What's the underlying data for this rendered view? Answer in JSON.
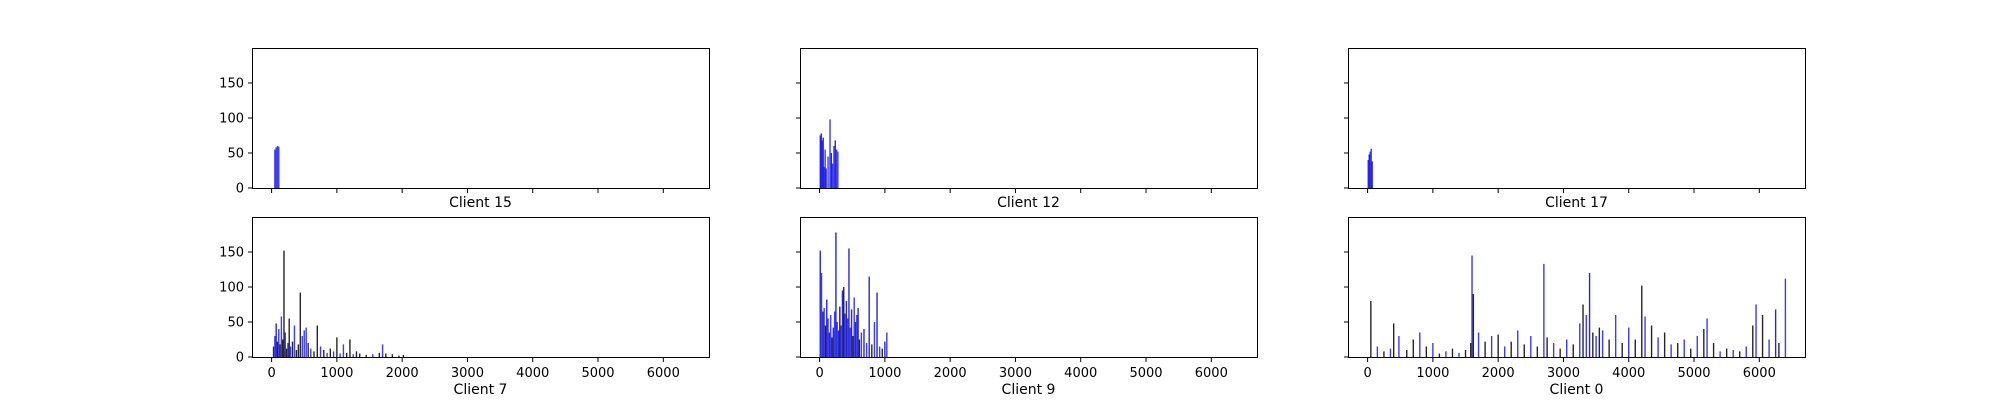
{
  "chart_data": [
    {
      "type": "bar",
      "xlabel": "Client 15",
      "xlim": [
        -300,
        6700
      ],
      "ylim": [
        0,
        200
      ],
      "xticks": [
        0,
        1000,
        2000,
        3000,
        4000,
        5000,
        6000
      ],
      "yticks": [
        0,
        50,
        100,
        150
      ],
      "show_xticklabels": false,
      "show_yticklabels": true,
      "grid": false,
      "bars": [
        [
          50,
          55,
          "#1a1aee"
        ],
        [
          70,
          58,
          "#1a1aee"
        ],
        [
          90,
          60,
          "#1a1aee"
        ],
        [
          110,
          59,
          "#1a1aee"
        ]
      ]
    },
    {
      "type": "bar",
      "xlabel": "Client 12",
      "xlim": [
        -300,
        6700
      ],
      "ylim": [
        0,
        200
      ],
      "xticks": [
        0,
        1000,
        2000,
        3000,
        4000,
        5000,
        6000
      ],
      "yticks": [
        0,
        50,
        100,
        150
      ],
      "show_xticklabels": false,
      "show_yticklabels": false,
      "grid": false,
      "bars": [
        [
          10,
          75,
          "#1a1aee"
        ],
        [
          25,
          78,
          "#0000cc"
        ],
        [
          40,
          68,
          "#1a1aee"
        ],
        [
          55,
          72,
          "#0000cc"
        ],
        [
          70,
          30,
          "#1a1aee"
        ],
        [
          85,
          55,
          "#1a1aee"
        ],
        [
          100,
          28,
          "#0000cc"
        ],
        [
          130,
          45,
          "#1a1aee"
        ],
        [
          160,
          98,
          "#1a1aee"
        ],
        [
          180,
          50,
          "#0000cc"
        ],
        [
          200,
          35,
          "#1a1aee"
        ],
        [
          220,
          60,
          "#1a1aee"
        ],
        [
          240,
          68,
          "#0000cc"
        ],
        [
          260,
          55,
          "#1a1aee"
        ],
        [
          280,
          52,
          "#1a1aee"
        ]
      ]
    },
    {
      "type": "bar",
      "xlabel": "Client 17",
      "xlim": [
        -300,
        6700
      ],
      "ylim": [
        0,
        200
      ],
      "xticks": [
        0,
        1000,
        2000,
        3000,
        4000,
        5000,
        6000
      ],
      "yticks": [
        0,
        50,
        100,
        150
      ],
      "show_xticklabels": false,
      "show_yticklabels": false,
      "grid": false,
      "bars": [
        [
          10,
          40,
          "#1a1aee"
        ],
        [
          25,
          48,
          "#0000cc"
        ],
        [
          40,
          52,
          "#1a1aee"
        ],
        [
          55,
          56,
          "#1a1aee"
        ],
        [
          70,
          38,
          "#0000cc"
        ]
      ]
    },
    {
      "type": "bar",
      "xlabel": "Client 7",
      "xlim": [
        -300,
        6700
      ],
      "ylim": [
        0,
        200
      ],
      "xticks": [
        0,
        1000,
        2000,
        3000,
        4000,
        5000,
        6000
      ],
      "yticks": [
        0,
        50,
        100,
        150
      ],
      "show_xticklabels": true,
      "show_yticklabels": true,
      "grid": false,
      "bars": [
        [
          30,
          15,
          "#000000"
        ],
        [
          50,
          30,
          "#1a1aee"
        ],
        [
          70,
          48,
          "#0000cc"
        ],
        [
          90,
          22,
          "#000000"
        ],
        [
          110,
          40,
          "#1a1aee"
        ],
        [
          130,
          18,
          "#000000"
        ],
        [
          150,
          58,
          "#1a1aee"
        ],
        [
          170,
          25,
          "#000000"
        ],
        [
          190,
          152,
          "#000000"
        ],
        [
          210,
          35,
          "#1a1aee"
        ],
        [
          230,
          12,
          "#000000"
        ],
        [
          250,
          20,
          "#1a1aee"
        ],
        [
          270,
          55,
          "#000000"
        ],
        [
          290,
          15,
          "#1a1aee"
        ],
        [
          320,
          22,
          "#000000"
        ],
        [
          350,
          45,
          "#1a1aee"
        ],
        [
          380,
          10,
          "#000000"
        ],
        [
          410,
          18,
          "#000000"
        ],
        [
          440,
          92,
          "#000000"
        ],
        [
          470,
          30,
          "#1a1aee"
        ],
        [
          500,
          38,
          "#1a1aee"
        ],
        [
          530,
          42,
          "#1a1aee"
        ],
        [
          560,
          20,
          "#000000"
        ],
        [
          600,
          12,
          "#1a1aee"
        ],
        [
          650,
          8,
          "#000000"
        ],
        [
          700,
          45,
          "#000000"
        ],
        [
          750,
          15,
          "#1a1aee"
        ],
        [
          800,
          10,
          "#000000"
        ],
        [
          850,
          6,
          "#1a1aee"
        ],
        [
          900,
          12,
          "#000000"
        ],
        [
          950,
          8,
          "#1a1aee"
        ],
        [
          1000,
          28,
          "#000000"
        ],
        [
          1050,
          5,
          "#1a1aee"
        ],
        [
          1100,
          18,
          "#1a1aee"
        ],
        [
          1150,
          6,
          "#000000"
        ],
        [
          1200,
          25,
          "#000000"
        ],
        [
          1250,
          4,
          "#1a1aee"
        ],
        [
          1300,
          8,
          "#000000"
        ],
        [
          1350,
          5,
          "#000000"
        ],
        [
          1450,
          3,
          "#000000"
        ],
        [
          1550,
          4,
          "#1a1aee"
        ],
        [
          1650,
          6,
          "#000000"
        ],
        [
          1700,
          18,
          "#1a1aee"
        ],
        [
          1750,
          5,
          "#000000"
        ],
        [
          1850,
          4,
          "#000000"
        ],
        [
          1950,
          2,
          "#000000"
        ],
        [
          2020,
          3,
          "#000000"
        ]
      ]
    },
    {
      "type": "bar",
      "xlabel": "Client 9",
      "xlim": [
        -300,
        6700
      ],
      "ylim": [
        0,
        200
      ],
      "xticks": [
        0,
        1000,
        2000,
        3000,
        4000,
        5000,
        6000
      ],
      "yticks": [
        0,
        50,
        100,
        150
      ],
      "show_xticklabels": true,
      "show_yticklabels": false,
      "grid": false,
      "bars": [
        [
          10,
          152,
          "#0000cc"
        ],
        [
          30,
          120,
          "#1a1aee"
        ],
        [
          50,
          65,
          "#0000cc"
        ],
        [
          70,
          70,
          "#1a1aee"
        ],
        [
          90,
          45,
          "#000000"
        ],
        [
          110,
          82,
          "#0000cc"
        ],
        [
          130,
          55,
          "#1a1aee"
        ],
        [
          150,
          35,
          "#0000cc"
        ],
        [
          170,
          60,
          "#1a1aee"
        ],
        [
          190,
          28,
          "#000000"
        ],
        [
          210,
          42,
          "#0000cc"
        ],
        [
          230,
          65,
          "#1a1aee"
        ],
        [
          250,
          178,
          "#0000cc"
        ],
        [
          270,
          50,
          "#1a1aee"
        ],
        [
          290,
          38,
          "#0000cc"
        ],
        [
          310,
          72,
          "#000000"
        ],
        [
          330,
          45,
          "#1a1aee"
        ],
        [
          350,
          95,
          "#0000cc"
        ],
        [
          370,
          100,
          "#000000"
        ],
        [
          390,
          62,
          "#1a1aee"
        ],
        [
          410,
          80,
          "#0000cc"
        ],
        [
          430,
          55,
          "#1a1aee"
        ],
        [
          450,
          155,
          "#0000cc"
        ],
        [
          470,
          42,
          "#1a1aee"
        ],
        [
          490,
          68,
          "#0000cc"
        ],
        [
          510,
          30,
          "#000000"
        ],
        [
          530,
          85,
          "#1a1aee"
        ],
        [
          550,
          50,
          "#0000cc"
        ],
        [
          570,
          60,
          "#1a1aee"
        ],
        [
          590,
          70,
          "#0000cc"
        ],
        [
          610,
          25,
          "#000000"
        ],
        [
          640,
          35,
          "#1a1aee"
        ],
        [
          680,
          40,
          "#0000cc"
        ],
        [
          720,
          20,
          "#1a1aee"
        ],
        [
          760,
          115,
          "#0000cc"
        ],
        [
          800,
          18,
          "#000000"
        ],
        [
          840,
          50,
          "#1a1aee"
        ],
        [
          880,
          92,
          "#0000cc"
        ],
        [
          920,
          15,
          "#1a1aee"
        ],
        [
          960,
          12,
          "#000000"
        ],
        [
          1000,
          22,
          "#0000cc"
        ],
        [
          1030,
          35,
          "#1a1aee"
        ]
      ]
    },
    {
      "type": "bar",
      "xlabel": "Client 0",
      "xlim": [
        -300,
        6700
      ],
      "ylim": [
        0,
        200
      ],
      "xticks": [
        0,
        1000,
        2000,
        3000,
        4000,
        5000,
        6000
      ],
      "yticks": [
        0,
        50,
        100,
        150
      ],
      "show_xticklabels": true,
      "show_yticklabels": false,
      "grid": false,
      "bars": [
        [
          50,
          80,
          "#000000"
        ],
        [
          150,
          15,
          "#1a1aee"
        ],
        [
          250,
          8,
          "#000000"
        ],
        [
          350,
          12,
          "#1a1aee"
        ],
        [
          400,
          48,
          "#000000"
        ],
        [
          480,
          30,
          "#1a1aee"
        ],
        [
          600,
          10,
          "#000000"
        ],
        [
          700,
          25,
          "#000000"
        ],
        [
          800,
          35,
          "#1a1aee"
        ],
        [
          900,
          15,
          "#000000"
        ],
        [
          1000,
          20,
          "#1a1aee"
        ],
        [
          1100,
          5,
          "#000000"
        ],
        [
          1200,
          8,
          "#1a1aee"
        ],
        [
          1300,
          12,
          "#000000"
        ],
        [
          1400,
          6,
          "#1a1aee"
        ],
        [
          1500,
          10,
          "#000000"
        ],
        [
          1580,
          20,
          "#000000"
        ],
        [
          1600,
          145,
          "#1a1aee"
        ],
        [
          1620,
          90,
          "#000000"
        ],
        [
          1700,
          35,
          "#1a1aee"
        ],
        [
          1800,
          22,
          "#000000"
        ],
        [
          1900,
          30,
          "#1a1aee"
        ],
        [
          2000,
          32,
          "#000000"
        ],
        [
          2100,
          15,
          "#1a1aee"
        ],
        [
          2200,
          22,
          "#000000"
        ],
        [
          2300,
          38,
          "#1a1aee"
        ],
        [
          2400,
          18,
          "#000000"
        ],
        [
          2500,
          30,
          "#1a1aee"
        ],
        [
          2600,
          15,
          "#000000"
        ],
        [
          2700,
          133,
          "#1a1aee"
        ],
        [
          2750,
          28,
          "#000000"
        ],
        [
          2850,
          20,
          "#1a1aee"
        ],
        [
          2950,
          12,
          "#000000"
        ],
        [
          3050,
          25,
          "#1a1aee"
        ],
        [
          3150,
          18,
          "#000000"
        ],
        [
          3250,
          48,
          "#1a1aee"
        ],
        [
          3300,
          75,
          "#000000"
        ],
        [
          3350,
          60,
          "#1a1aee"
        ],
        [
          3400,
          120,
          "#0000cc"
        ],
        [
          3450,
          35,
          "#000000"
        ],
        [
          3500,
          30,
          "#1a1aee"
        ],
        [
          3550,
          42,
          "#000000"
        ],
        [
          3600,
          38,
          "#1a1aee"
        ],
        [
          3700,
          25,
          "#000000"
        ],
        [
          3800,
          60,
          "#1a1aee"
        ],
        [
          3900,
          20,
          "#000000"
        ],
        [
          4000,
          42,
          "#1a1aee"
        ],
        [
          4100,
          25,
          "#000000"
        ],
        [
          4200,
          102,
          "#000000"
        ],
        [
          4250,
          58,
          "#1a1aee"
        ],
        [
          4350,
          45,
          "#000000"
        ],
        [
          4450,
          28,
          "#1a1aee"
        ],
        [
          4550,
          35,
          "#000000"
        ],
        [
          4650,
          18,
          "#1a1aee"
        ],
        [
          4750,
          20,
          "#000000"
        ],
        [
          4850,
          25,
          "#1a1aee"
        ],
        [
          4950,
          12,
          "#000000"
        ],
        [
          5050,
          30,
          "#1a1aee"
        ],
        [
          5150,
          40,
          "#000000"
        ],
        [
          5200,
          55,
          "#1a1aee"
        ],
        [
          5300,
          20,
          "#000000"
        ],
        [
          5400,
          8,
          "#1a1aee"
        ],
        [
          5500,
          12,
          "#000000"
        ],
        [
          5600,
          10,
          "#1a1aee"
        ],
        [
          5700,
          8,
          "#000000"
        ],
        [
          5800,
          15,
          "#1a1aee"
        ],
        [
          5900,
          45,
          "#000000"
        ],
        [
          5950,
          75,
          "#1a1aee"
        ],
        [
          6050,
          60,
          "#000000"
        ],
        [
          6150,
          25,
          "#1a1aee"
        ],
        [
          6250,
          68,
          "#0000cc"
        ],
        [
          6300,
          20,
          "#000000"
        ],
        [
          6400,
          112,
          "#1a1aee"
        ]
      ]
    }
  ]
}
